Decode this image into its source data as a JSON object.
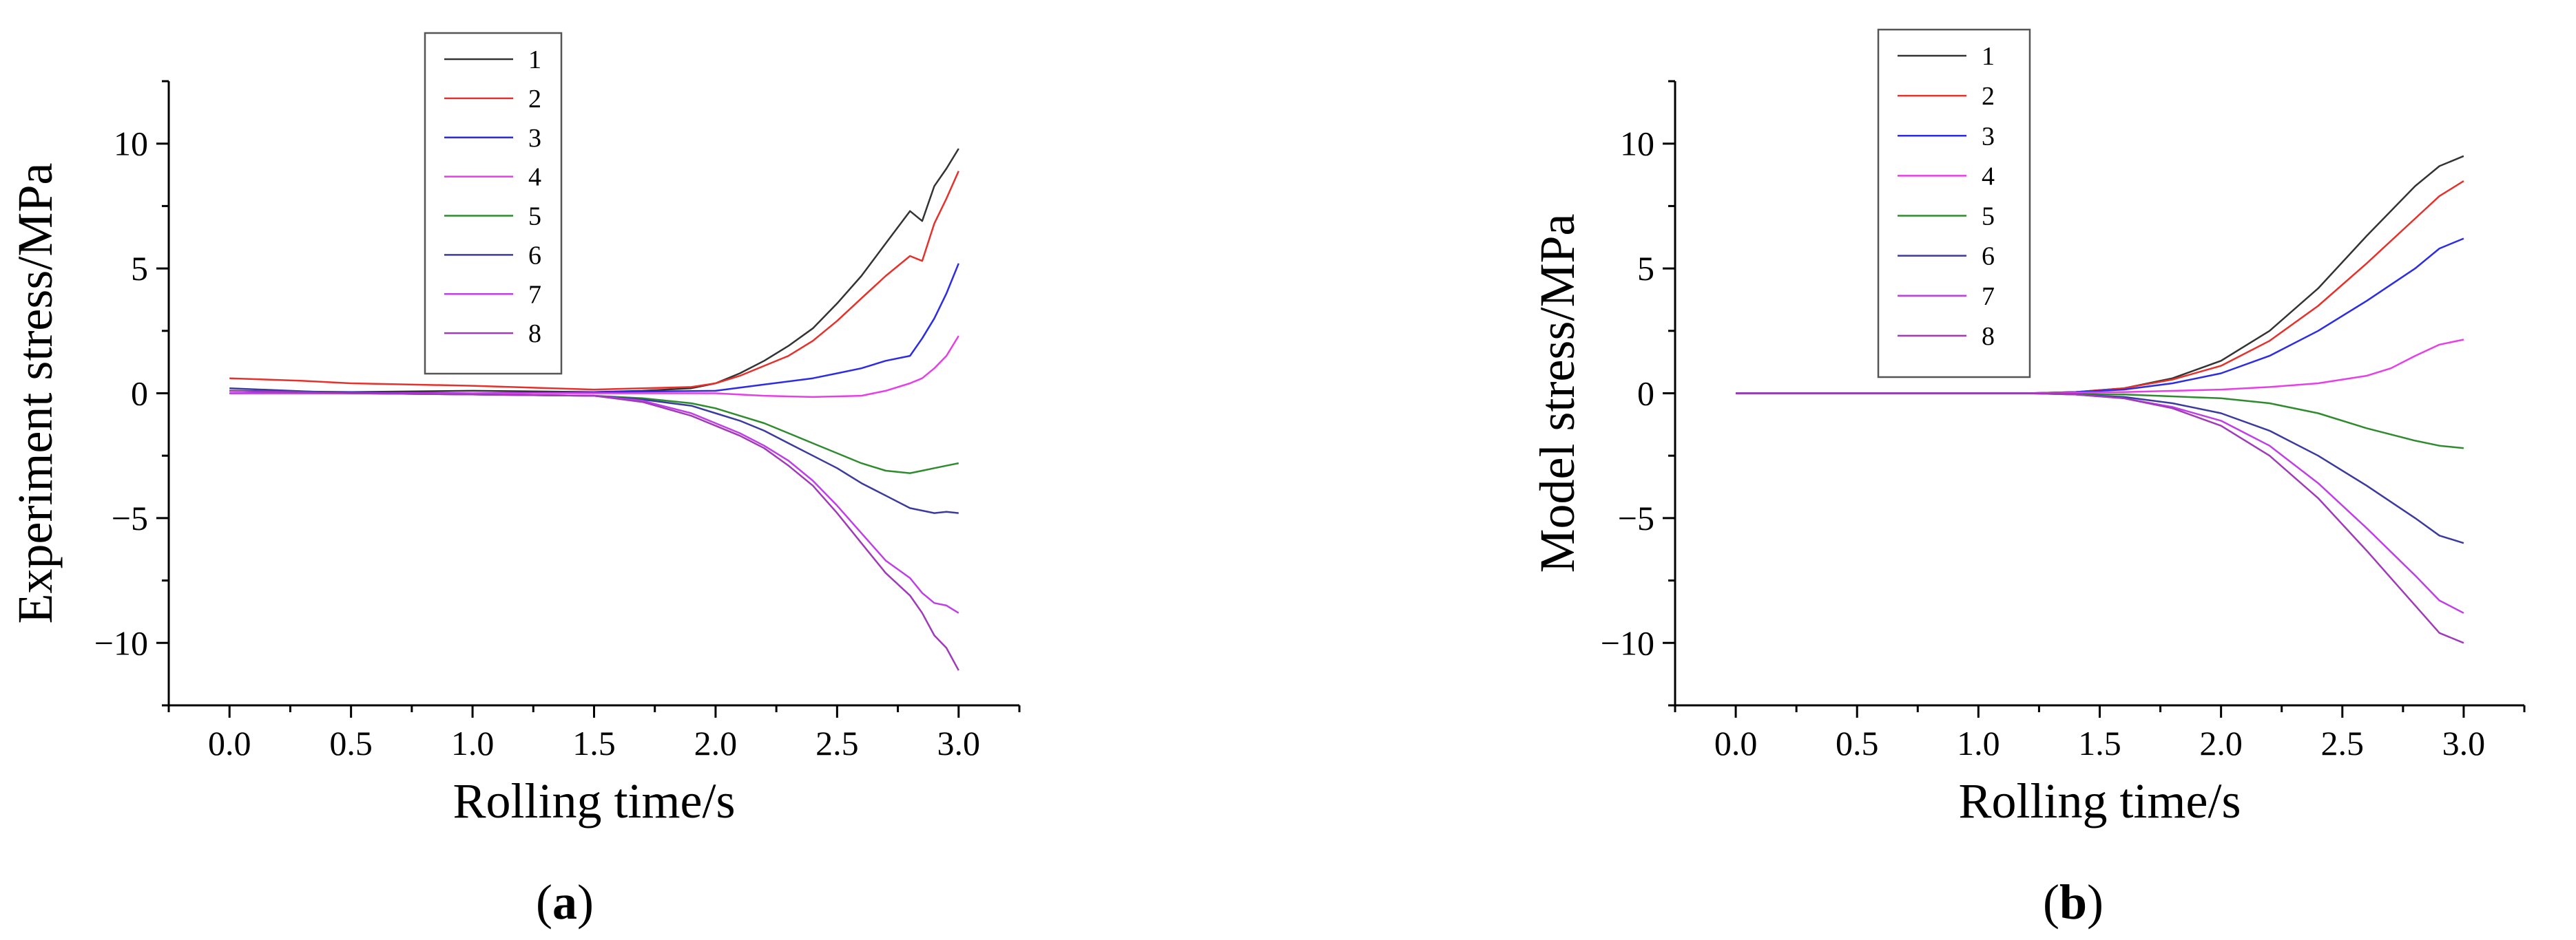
{
  "figure": {
    "panels": [
      {
        "caption_open": "(",
        "caption_letter": "a",
        "caption_close": ")"
      },
      {
        "caption_open": "(",
        "caption_letter": "b",
        "caption_close": ")"
      }
    ]
  },
  "chart_data": [
    {
      "type": "line",
      "title": "",
      "xlabel": "Rolling time/s",
      "ylabel": "Experiment stress/MPa",
      "xlim": [
        -0.25,
        3.25
      ],
      "ylim": [
        -12.5,
        12.5
      ],
      "xticks": [
        "0.0",
        "0.5",
        "1.0",
        "1.5",
        "2.0",
        "2.5",
        "3.0"
      ],
      "yticks": [
        "10",
        "5",
        "0",
        "−5",
        "−10"
      ],
      "legend_position": "top-center",
      "grid": false,
      "series": [
        {
          "name": "1",
          "color": "#333333",
          "x": [
            0.0,
            0.5,
            1.0,
            1.5,
            1.7,
            1.9,
            2.0,
            2.1,
            2.2,
            2.3,
            2.4,
            2.5,
            2.6,
            2.7,
            2.8,
            2.85,
            2.9,
            2.95,
            3.0
          ],
          "y": [
            0.1,
            0.05,
            0.1,
            0.05,
            0.1,
            0.2,
            0.4,
            0.8,
            1.3,
            1.9,
            2.6,
            3.6,
            4.7,
            6.0,
            7.3,
            6.9,
            8.3,
            9.0,
            9.8
          ]
        },
        {
          "name": "2",
          "color": "#e8302a",
          "x": [
            0.0,
            0.3,
            0.5,
            1.0,
            1.5,
            1.7,
            1.9,
            2.0,
            2.1,
            2.2,
            2.3,
            2.4,
            2.5,
            2.6,
            2.7,
            2.8,
            2.85,
            2.9,
            2.95,
            3.0
          ],
          "y": [
            0.6,
            0.5,
            0.4,
            0.3,
            0.15,
            0.2,
            0.25,
            0.4,
            0.7,
            1.1,
            1.5,
            2.1,
            2.9,
            3.8,
            4.7,
            5.5,
            5.3,
            6.8,
            7.8,
            8.9
          ]
        },
        {
          "name": "3",
          "color": "#2b2be8",
          "x": [
            0.0,
            0.5,
            1.0,
            1.5,
            2.0,
            2.2,
            2.4,
            2.5,
            2.6,
            2.7,
            2.8,
            2.85,
            2.9,
            2.95,
            3.0
          ],
          "y": [
            0.0,
            0.05,
            0.0,
            0.05,
            0.1,
            0.35,
            0.6,
            0.8,
            1.0,
            1.3,
            1.5,
            2.2,
            3.0,
            4.0,
            5.2
          ]
        },
        {
          "name": "4",
          "color": "#e83ee8",
          "x": [
            0.0,
            0.5,
            1.0,
            1.5,
            2.0,
            2.2,
            2.4,
            2.6,
            2.7,
            2.8,
            2.85,
            2.9,
            2.95,
            3.0
          ],
          "y": [
            0.0,
            0.0,
            0.0,
            0.0,
            0.0,
            -0.1,
            -0.15,
            -0.1,
            0.1,
            0.4,
            0.6,
            1.0,
            1.5,
            2.3
          ]
        },
        {
          "name": "5",
          "color": "#2e8b2e",
          "x": [
            0.0,
            0.5,
            1.0,
            1.5,
            1.7,
            1.9,
            2.0,
            2.1,
            2.2,
            2.3,
            2.4,
            2.5,
            2.6,
            2.7,
            2.8,
            2.85,
            2.9,
            2.95,
            3.0
          ],
          "y": [
            0.1,
            0.0,
            -0.05,
            -0.1,
            -0.2,
            -0.4,
            -0.6,
            -0.9,
            -1.2,
            -1.6,
            -2.0,
            -2.4,
            -2.8,
            -3.1,
            -3.2,
            -3.1,
            -3.0,
            -2.9,
            -2.8
          ]
        },
        {
          "name": "6",
          "color": "#3a3aa0",
          "x": [
            0.0,
            0.5,
            1.0,
            1.5,
            1.7,
            1.9,
            2.0,
            2.1,
            2.2,
            2.3,
            2.4,
            2.5,
            2.6,
            2.7,
            2.8,
            2.85,
            2.9,
            2.95,
            3.0
          ],
          "y": [
            0.2,
            0.0,
            -0.05,
            -0.1,
            -0.25,
            -0.5,
            -0.8,
            -1.1,
            -1.5,
            -2.0,
            -2.5,
            -3.0,
            -3.6,
            -4.1,
            -4.6,
            -4.7,
            -4.8,
            -4.75,
            -4.8
          ]
        },
        {
          "name": "7",
          "color": "#c03ee8",
          "x": [
            0.0,
            0.5,
            1.0,
            1.5,
            1.7,
            1.9,
            2.0,
            2.1,
            2.2,
            2.3,
            2.4,
            2.5,
            2.6,
            2.7,
            2.8,
            2.85,
            2.9,
            2.95,
            3.0
          ],
          "y": [
            0.0,
            0.0,
            -0.05,
            -0.1,
            -0.3,
            -0.8,
            -1.2,
            -1.6,
            -2.1,
            -2.7,
            -3.5,
            -4.5,
            -5.6,
            -6.7,
            -7.4,
            -8.0,
            -8.4,
            -8.5,
            -8.8
          ]
        },
        {
          "name": "8",
          "color": "#a03ab8",
          "x": [
            0.0,
            0.5,
            1.0,
            1.5,
            1.7,
            1.9,
            2.0,
            2.1,
            2.2,
            2.3,
            2.4,
            2.5,
            2.6,
            2.7,
            2.8,
            2.85,
            2.9,
            2.95,
            3.0
          ],
          "y": [
            0.1,
            0.0,
            -0.05,
            -0.1,
            -0.35,
            -0.9,
            -1.3,
            -1.7,
            -2.2,
            -2.9,
            -3.7,
            -4.8,
            -6.0,
            -7.2,
            -8.1,
            -8.8,
            -9.7,
            -10.2,
            -11.1
          ]
        }
      ]
    },
    {
      "type": "line",
      "title": "",
      "xlabel": "Rolling time/s",
      "ylabel": "Model stress/MPa",
      "xlim": [
        -0.25,
        3.25
      ],
      "ylim": [
        -12.5,
        12.5
      ],
      "xticks": [
        "0.0",
        "0.5",
        "1.0",
        "1.5",
        "2.0",
        "2.5",
        "3.0"
      ],
      "yticks": [
        "10",
        "5",
        "0",
        "−5",
        "−10"
      ],
      "legend_position": "top-center",
      "grid": false,
      "series": [
        {
          "name": "1",
          "color": "#333333",
          "x": [
            0.0,
            1.2,
            1.4,
            1.6,
            1.8,
            2.0,
            2.2,
            2.4,
            2.6,
            2.8,
            2.9,
            3.0
          ],
          "y": [
            0.0,
            0.0,
            0.05,
            0.2,
            0.6,
            1.3,
            2.5,
            4.2,
            6.3,
            8.3,
            9.1,
            9.5
          ]
        },
        {
          "name": "2",
          "color": "#e8302a",
          "x": [
            0.0,
            1.2,
            1.4,
            1.6,
            1.8,
            2.0,
            2.2,
            2.4,
            2.6,
            2.8,
            2.9,
            3.0
          ],
          "y": [
            0.0,
            0.0,
            0.05,
            0.2,
            0.55,
            1.1,
            2.1,
            3.5,
            5.2,
            7.0,
            7.9,
            8.5
          ]
        },
        {
          "name": "3",
          "color": "#2b2be8",
          "x": [
            0.0,
            1.2,
            1.4,
            1.6,
            1.8,
            2.0,
            2.2,
            2.4,
            2.6,
            2.8,
            2.9,
            3.0
          ],
          "y": [
            0.0,
            0.0,
            0.05,
            0.15,
            0.4,
            0.8,
            1.5,
            2.5,
            3.7,
            5.0,
            5.8,
            6.2
          ]
        },
        {
          "name": "4",
          "color": "#e83ee8",
          "x": [
            0.0,
            1.2,
            1.6,
            2.0,
            2.2,
            2.4,
            2.6,
            2.7,
            2.8,
            2.9,
            3.0
          ],
          "y": [
            0.0,
            0.0,
            0.05,
            0.15,
            0.25,
            0.4,
            0.7,
            1.0,
            1.5,
            1.95,
            2.15
          ]
        },
        {
          "name": "5",
          "color": "#2e8b2e",
          "x": [
            0.0,
            1.2,
            1.6,
            2.0,
            2.2,
            2.4,
            2.6,
            2.8,
            2.9,
            3.0
          ],
          "y": [
            0.0,
            0.0,
            -0.05,
            -0.2,
            -0.4,
            -0.8,
            -1.4,
            -1.9,
            -2.1,
            -2.2
          ]
        },
        {
          "name": "6",
          "color": "#3a3aa0",
          "x": [
            0.0,
            1.2,
            1.4,
            1.6,
            1.8,
            2.0,
            2.2,
            2.4,
            2.6,
            2.8,
            2.9,
            3.0
          ],
          "y": [
            0.0,
            0.0,
            -0.05,
            -0.15,
            -0.4,
            -0.8,
            -1.5,
            -2.5,
            -3.7,
            -5.0,
            -5.7,
            -6.0
          ]
        },
        {
          "name": "7",
          "color": "#c03ee8",
          "x": [
            0.0,
            1.2,
            1.4,
            1.6,
            1.8,
            2.0,
            2.2,
            2.4,
            2.6,
            2.8,
            2.9,
            3.0
          ],
          "y": [
            0.0,
            0.0,
            -0.05,
            -0.2,
            -0.55,
            -1.1,
            -2.1,
            -3.6,
            -5.4,
            -7.3,
            -8.3,
            -8.8
          ]
        },
        {
          "name": "8",
          "color": "#a03ab8",
          "x": [
            0.0,
            1.2,
            1.4,
            1.6,
            1.8,
            2.0,
            2.2,
            2.4,
            2.6,
            2.8,
            2.9,
            3.0
          ],
          "y": [
            0.0,
            0.0,
            -0.05,
            -0.2,
            -0.6,
            -1.3,
            -2.5,
            -4.2,
            -6.3,
            -8.5,
            -9.6,
            -10.0
          ]
        }
      ]
    }
  ]
}
